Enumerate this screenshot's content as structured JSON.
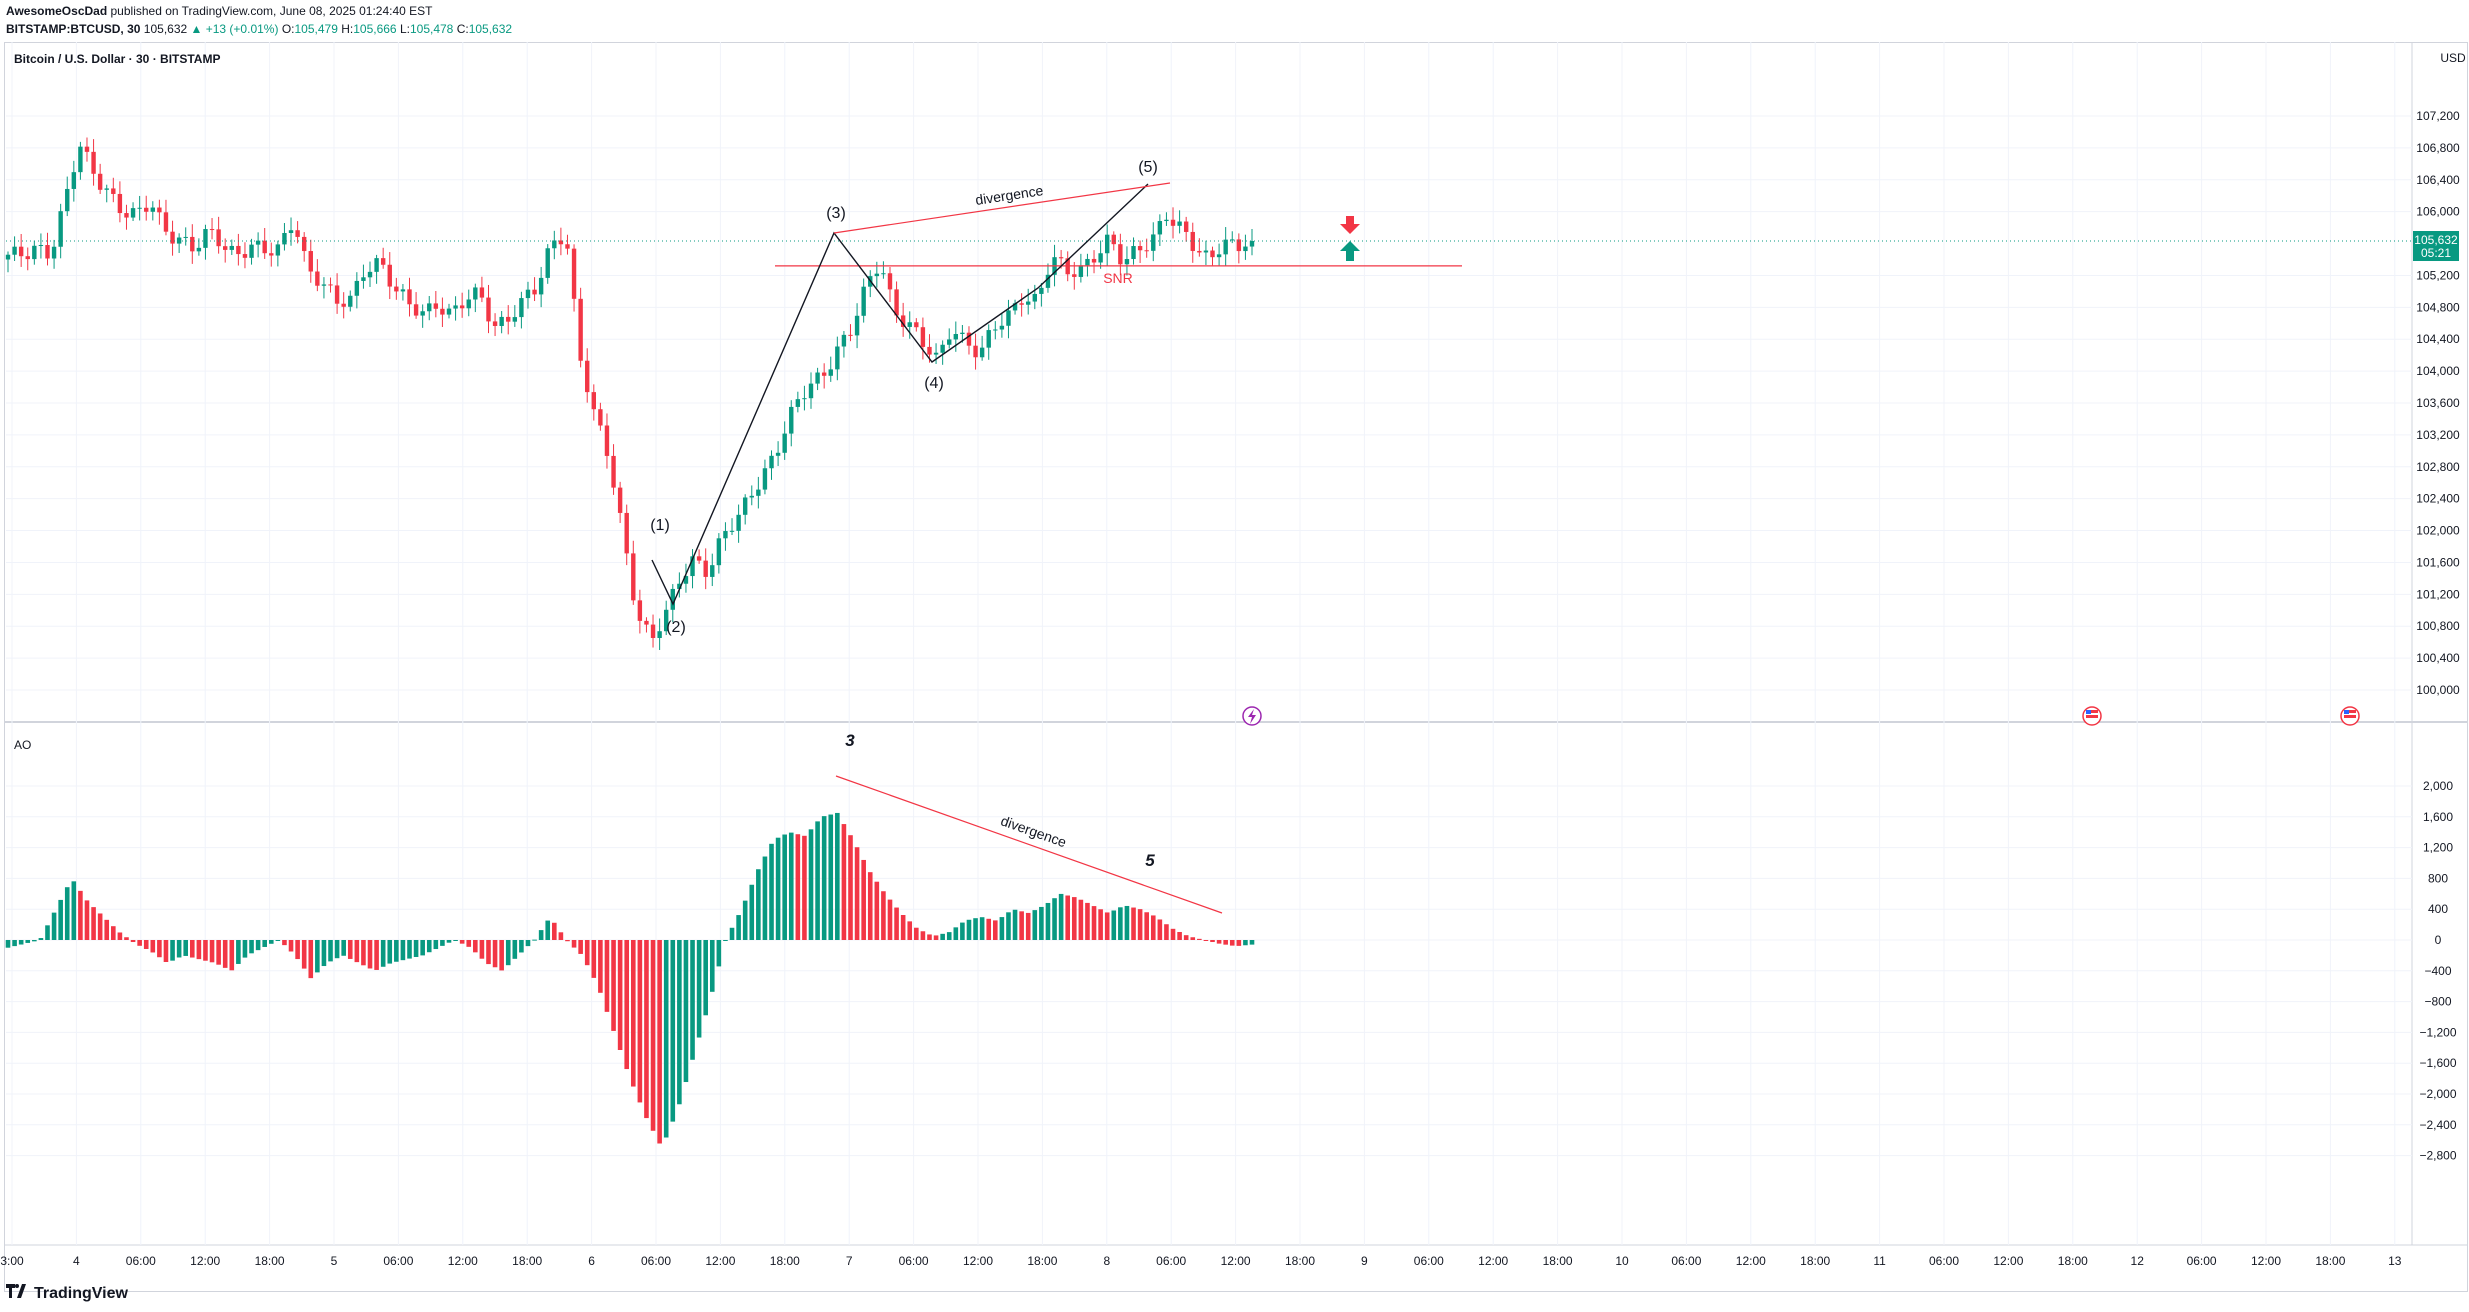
{
  "header": {
    "publisher": "AwesomeOscDad",
    "published_text": "published on TradingView.com, June 08, 2025 01:24:40 EST",
    "ticker": "BITSTAMP:BTCUSD, 30",
    "last": "105,632",
    "change": "▲ +13 (+0.01%)",
    "o_label": "O:",
    "o": "105,479",
    "h_label": "H:",
    "h": "105,666",
    "l_label": "L:",
    "l": "105,478",
    "c_label": "C:",
    "c": "105,632"
  },
  "symbol_title": "Bitcoin / U.S. Dollar · 30 · BITSTAMP",
  "currency": "USD",
  "price_badge": {
    "price": "105,632",
    "countdown": "05:21"
  },
  "indicator_label": "AO",
  "footer": {
    "brand": "TradingView"
  },
  "colors": {
    "up": "#089981",
    "down": "#f23645",
    "line": "#f23645",
    "wave": "#131722",
    "grid": "#f0f3fa"
  },
  "chart_data": {
    "type": "candlestick",
    "y_ticks": [
      "107,200",
      "106,800",
      "106,400",
      "106,000",
      "105,200",
      "104,800",
      "104,400",
      "104,000",
      "103,600",
      "103,200",
      "102,800",
      "102,400",
      "102,000",
      "101,600",
      "101,200",
      "100,800",
      "100,400",
      "100,000"
    ],
    "ao_ticks": [
      "2,000",
      "1,600",
      "1,200",
      "800",
      "400",
      "0",
      "−400",
      "−800",
      "−1,200",
      "−1,600",
      "−2,000",
      "−2,400",
      "−2,800"
    ],
    "x_ticks": [
      "3:00",
      "4",
      "06:00",
      "12:00",
      "18:00",
      "5",
      "06:00",
      "12:00",
      "18:00",
      "6",
      "06:00",
      "12:00",
      "18:00",
      "7",
      "06:00",
      "12:00",
      "18:00",
      "8",
      "06:00",
      "12:00",
      "18:00",
      "9",
      "06:00",
      "12:00",
      "18:00",
      "10",
      "06:00",
      "12:00",
      "18:00",
      "11",
      "06:00",
      "12:00",
      "18:00",
      "12",
      "06:00",
      "12:00",
      "18:00",
      "13"
    ],
    "close_path": [
      105400,
      105450,
      105600,
      105500,
      106100,
      106800,
      106500,
      106300,
      106000,
      105900,
      106100,
      105800,
      105700,
      105500,
      105700,
      105600,
      105500,
      105600,
      105450,
      105500,
      105950,
      105300,
      105100,
      104800,
      104900,
      105350,
      105400,
      105000,
      104800,
      104750,
      104900,
      104700,
      104850,
      104950,
      104600,
      104700,
      104850,
      105000,
      105600,
      105800,
      104200,
      103400,
      102900,
      102000,
      101000,
      100600,
      100900,
      101400,
      101700,
      101500,
      101900,
      102100,
      102500,
      102800,
      103100,
      103500,
      103800,
      104000,
      104300,
      104500,
      105000,
      105400,
      104800,
      104600,
      104300,
      104100,
      104600,
      104400,
      104200,
      104500,
      104700,
      105000,
      104900,
      105400,
      105200,
      105300,
      105500,
      105650,
      105300,
      105500,
      105700,
      106000,
      105750,
      105500,
      105400,
      105700,
      105550,
      105632
    ],
    "ao_values": [
      -100,
      -50,
      0,
      400,
      800,
      500,
      300,
      100,
      -50,
      -150,
      -300,
      -200,
      -250,
      -300,
      -400,
      -200,
      -100,
      0,
      -200,
      -500,
      -300,
      -200,
      -300,
      -400,
      -300,
      -250,
      -200,
      -100,
      0,
      -100,
      -300,
      -400,
      -200,
      0,
      300,
      0,
      -200,
      -600,
      -1200,
      -1800,
      -2300,
      -2700,
      -2200,
      -1500,
      -800,
      0,
      400,
      900,
      1300,
      1400,
      1350,
      1600,
      1650,
      1300,
      900,
      600,
      350,
      150,
      50,
      100,
      250,
      300,
      250,
      400,
      350,
      450,
      600,
      550,
      450,
      350,
      450,
      400,
      300,
      150,
      50,
      0,
      -50,
      -80,
      -60
    ],
    "annotations": {
      "wave_labels": [
        "(1)",
        "(2)",
        "(3)",
        "(4)",
        "(5)"
      ],
      "divergence_price": "divergence",
      "divergence_ao": "divergence",
      "snr": "SNR",
      "ao_wave_3": "3",
      "ao_wave_5": "5"
    },
    "grid": true
  }
}
